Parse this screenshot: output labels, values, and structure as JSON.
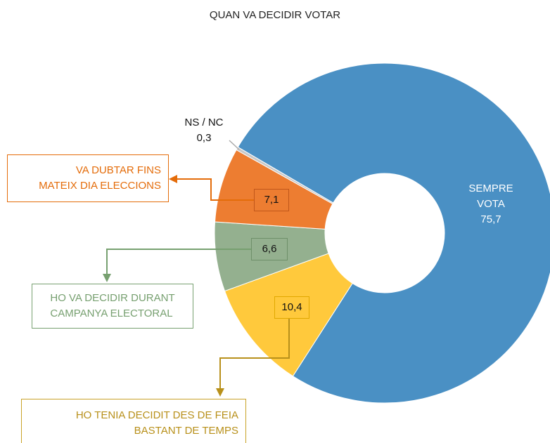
{
  "chart_data": {
    "type": "donut",
    "title": "QUAN VA DECIDIR VOTAR",
    "categories": [
      "SEMPRE\nVOTA",
      "HO TENIA DECIDIT DES DE FEIA\nBASTANT DE TEMPS",
      "HO VA DECIDIR DURANT\nCAMPANYA ELECTORAL",
      "VA DUBTAR FINS\nMATEIX DIA ELECCIONS",
      "NS / NC"
    ],
    "values": [
      75.7,
      10.4,
      6.6,
      7.1,
      0.3
    ],
    "value_labels": [
      "75,7",
      "10,4",
      "6,6",
      "7,1",
      "0,3"
    ],
    "colors": [
      "#4a90c4",
      "#ffc93c",
      "#94b08f",
      "#ed7d31",
      "#c8c8c8"
    ]
  }
}
